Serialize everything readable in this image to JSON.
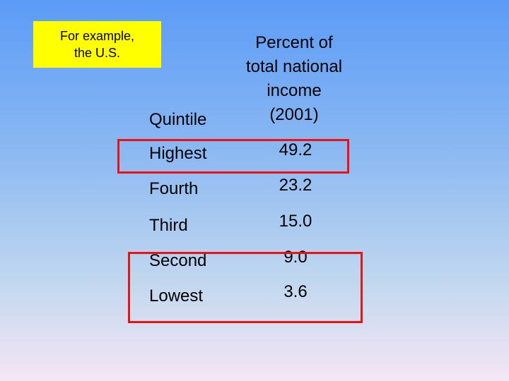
{
  "callout": {
    "line1": "For example,",
    "line2": "the U.S."
  },
  "headers": {
    "quintile": "Quintile",
    "percent_lines": [
      "Percent of",
      "total national",
      "income",
      "(2001)"
    ]
  },
  "rows": [
    {
      "label": "Highest",
      "value": "49.2"
    },
    {
      "label": "Fourth",
      "value": "23.2"
    },
    {
      "label": "Third",
      "value": "15.0"
    },
    {
      "label": "Second",
      "value": "9.0"
    },
    {
      "label": "Lowest",
      "value": "3.6"
    }
  ],
  "colors": {
    "callout_bg": "#ffff00",
    "highlight_border": "#ee1111"
  }
}
